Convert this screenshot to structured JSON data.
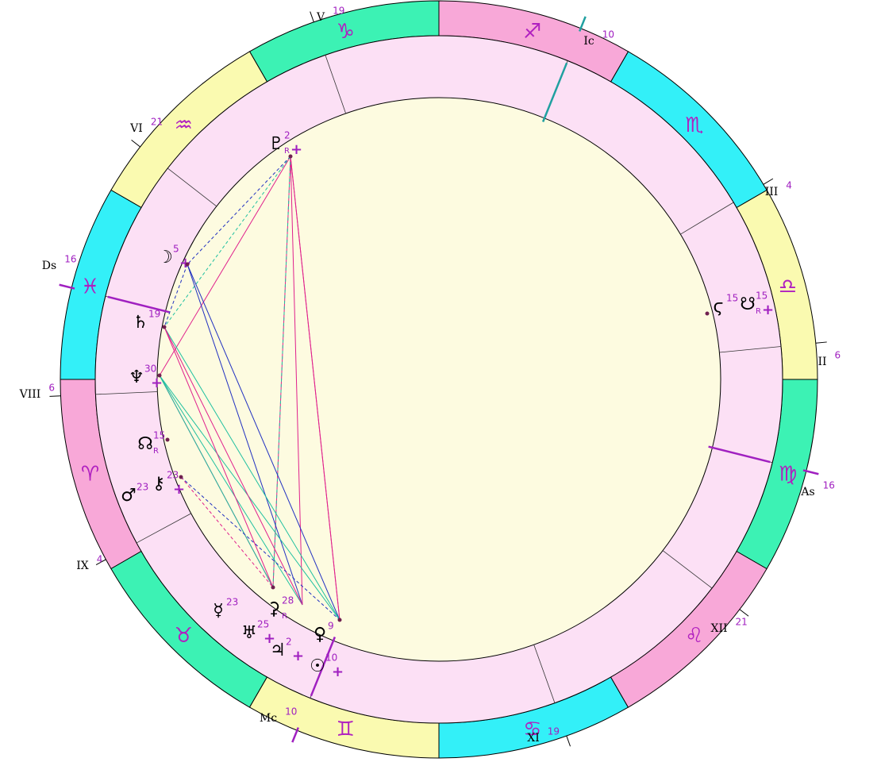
{
  "zodiac": [
    "♑",
    "♒",
    "♓",
    "♈",
    "♉",
    "♊",
    "♋",
    "♌",
    "♍",
    "♎",
    "♏",
    "♐"
  ],
  "houses": [
    {
      "label": "V",
      "degree": 19
    },
    {
      "label": "VI",
      "degree": 21
    },
    {
      "label": "Ds",
      "degree": 16
    },
    {
      "label": "VIII",
      "degree": 6
    },
    {
      "label": "IX",
      "degree": 4
    },
    {
      "label": "Mc",
      "degree": 10
    },
    {
      "label": "XI",
      "degree": 19
    },
    {
      "label": "XII",
      "degree": 21
    },
    {
      "label": "As",
      "degree": 16
    },
    {
      "label": "II",
      "degree": 6
    },
    {
      "label": "III",
      "degree": 4
    },
    {
      "label": "Ic",
      "degree": 10
    }
  ],
  "planets": [
    {
      "glyph": "♇",
      "degree": 2,
      "retro": "R",
      "mark": "+"
    },
    {
      "glyph": "☽",
      "degree": 5,
      "mark": "+"
    },
    {
      "glyph": "♄",
      "degree": 19
    },
    {
      "glyph": "♆",
      "degree": 30,
      "mark": "+"
    },
    {
      "glyph": "☊",
      "degree": 15,
      "retro": "R"
    },
    {
      "glyph": "⚷",
      "degree": 23,
      "mark": "+"
    },
    {
      "glyph": "♂",
      "degree": 23
    },
    {
      "glyph": "☿",
      "degree": 23
    },
    {
      "glyph": "⚳",
      "degree": 28,
      "retro": "R"
    },
    {
      "glyph": "♅",
      "degree": 25,
      "mark": "+"
    },
    {
      "glyph": "♃",
      "degree": 2,
      "mark": "+"
    },
    {
      "glyph": "☉",
      "degree": 10,
      "mark": "+"
    },
    {
      "glyph": "♀",
      "degree": 9
    },
    {
      "glyph": "ϛ",
      "degree": 15
    },
    {
      "glyph": "☋",
      "degree": 15,
      "retro": "R",
      "mark": "+"
    }
  ]
}
